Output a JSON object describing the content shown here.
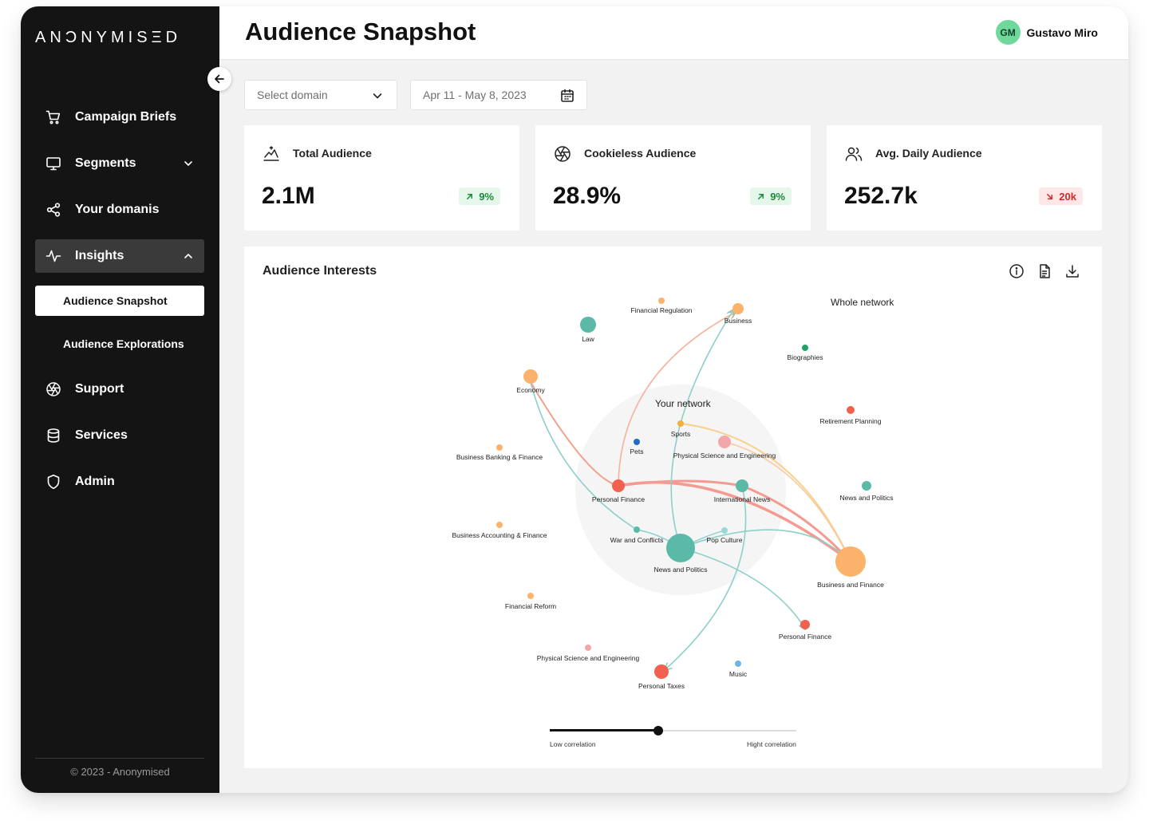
{
  "sidebar": {
    "logo": "ANƆNYMISΞD",
    "items": [
      {
        "label": "Campaign Briefs"
      },
      {
        "label": "Segments"
      },
      {
        "label": "Your domanis"
      },
      {
        "label": "Insights"
      },
      {
        "label": "Support"
      },
      {
        "label": "Services"
      },
      {
        "label": "Admin"
      }
    ],
    "subitems": [
      {
        "label": "Audience Snapshot",
        "selected": true
      },
      {
        "label": "Audience Explorations",
        "selected": false
      }
    ],
    "copyright": "© 2023 - Anonymised"
  },
  "header": {
    "title": "Audience Snapshot",
    "user": {
      "initials": "GM",
      "name": "Gustavo Miro",
      "avatar_color": "#6fd99c"
    }
  },
  "filters": {
    "domain_placeholder": "Select domain",
    "date_range": "Apr 11 - May 8, 2023"
  },
  "kpis": [
    {
      "title": "Total Audience",
      "value": "2.1M",
      "change": "9%",
      "trend": "up",
      "icon": "chart-summit-icon"
    },
    {
      "title": "Cookieless Audience",
      "value": "28.9%",
      "change": "9%",
      "trend": "up",
      "icon": "aperture-icon"
    },
    {
      "title": "Avg. Daily Audience",
      "value": "252.7k",
      "change": "20k",
      "trend": "down",
      "icon": "users-icon"
    }
  ],
  "colors": {
    "up": "#1c8a3b",
    "down": "#d12b2b",
    "teal": "#5bb9a8",
    "orange": "#fbb26b",
    "red": "#f2614f",
    "pink": "#f2a8a8"
  },
  "interests": {
    "title": "Audience Interests",
    "whole_network_label": "Whole network",
    "your_network_label": "Your network",
    "nodes": [
      {
        "id": "law",
        "label": "Law",
        "color": "#5bb9a8",
        "size": "md"
      },
      {
        "id": "fin_reg",
        "label": "Financial Regulation",
        "color": "#fbb26b",
        "size": "xs"
      },
      {
        "id": "business",
        "label": "Business",
        "color": "#fbb26b",
        "size": "sm"
      },
      {
        "id": "biographies",
        "label": "Biographies",
        "color": "#20a26a",
        "size": "xs"
      },
      {
        "id": "economy",
        "label": "Economy",
        "color": "#fbb26b",
        "size": "sm"
      },
      {
        "id": "retirement",
        "label": "Retirement Planning",
        "color": "#f2614f",
        "size": "xs"
      },
      {
        "id": "bbf",
        "label": "Business Banking & Finance",
        "color": "#fbb26b",
        "size": "xs"
      },
      {
        "id": "sports",
        "label": "Sports",
        "color": "#f1b23c",
        "size": "xs"
      },
      {
        "id": "pets",
        "label": "Pets",
        "color": "#1f6ec2",
        "size": "xs"
      },
      {
        "id": "pse1",
        "label": "Physical Science and Engineering",
        "color": "#f2a8a8",
        "size": "sm"
      },
      {
        "id": "pf1",
        "label": "Personal Finance",
        "color": "#f2614f",
        "size": "sm"
      },
      {
        "id": "intl",
        "label": "International News",
        "color": "#5bb9a8",
        "size": "sm"
      },
      {
        "id": "newspol2",
        "label": "News and Politics",
        "color": "#5bb9a8",
        "size": "xs"
      },
      {
        "id": "baf",
        "label": "Business Accounting & Finance",
        "color": "#fbb26b",
        "size": "xs"
      },
      {
        "id": "war",
        "label": "War and Conflicts",
        "color": "#5bb9a8",
        "size": "xs"
      },
      {
        "id": "pop",
        "label": "Pop Culture",
        "color": "#9ad8d3",
        "size": "xs"
      },
      {
        "id": "newspol",
        "label": "News and Politics",
        "color": "#5bb9a8",
        "size": "xl"
      },
      {
        "id": "busfin",
        "label": "Business and Finance",
        "color": "#fbb26b",
        "size": "xl"
      },
      {
        "id": "fin_reform",
        "label": "Financial Reform",
        "color": "#fbb26b",
        "size": "xs"
      },
      {
        "id": "pf2",
        "label": "Personal Finance",
        "color": "#f2614f",
        "size": "xs"
      },
      {
        "id": "pse2",
        "label": "Physical Science and Engineering",
        "color": "#f2a8a8",
        "size": "xs"
      },
      {
        "id": "music",
        "label": "Music",
        "color": "#6cb6e8",
        "size": "xs"
      },
      {
        "id": "taxes",
        "label": "Personal Taxes",
        "color": "#f2614f",
        "size": "sm"
      }
    ],
    "correlation": {
      "low_label": "Low correlation",
      "high_label": "Hight correlation",
      "value": 0.44
    }
  }
}
